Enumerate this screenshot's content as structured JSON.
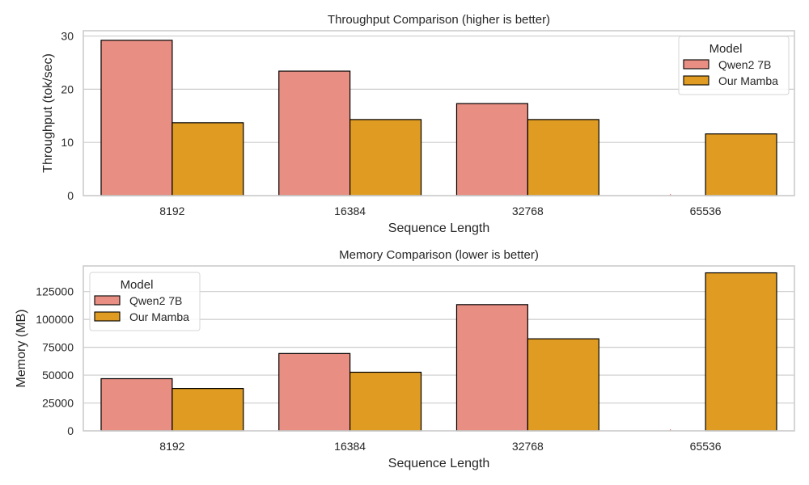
{
  "chart_data": [
    {
      "type": "bar",
      "title": "Throughput Comparison (higher is better)",
      "xlabel": "Sequence Length",
      "ylabel": "Throughput (tok/sec)",
      "categories": [
        "8192",
        "16384",
        "32768",
        "65536"
      ],
      "ylim": [
        0,
        31
      ],
      "yticks": [
        0,
        10,
        20,
        30
      ],
      "ytick_labels": [
        "0",
        "10",
        "20",
        "30"
      ],
      "grid": true,
      "legend": {
        "title": "Model",
        "position": "upper right",
        "entries": [
          "Qwen2 7B",
          "Our Mamba"
        ]
      },
      "series": [
        {
          "name": "Qwen2 7B",
          "color": "#e88e82",
          "values": [
            29.2,
            23.4,
            17.3,
            0
          ]
        },
        {
          "name": "Our Mamba",
          "color": "#e09c22",
          "values": [
            13.7,
            14.3,
            14.3,
            11.6
          ]
        }
      ]
    },
    {
      "type": "bar",
      "title": "Memory Comparison (lower is better)",
      "xlabel": "Sequence Length",
      "ylabel": "Memory (MB)",
      "categories": [
        "8192",
        "16384",
        "32768",
        "65536"
      ],
      "ylim": [
        0,
        148000
      ],
      "yticks": [
        0,
        25000,
        50000,
        75000,
        100000,
        125000
      ],
      "ytick_labels": [
        "0",
        "25000",
        "50000",
        "75000",
        "100000",
        "125000"
      ],
      "grid": true,
      "legend": {
        "title": "Model",
        "position": "upper left",
        "entries": [
          "Qwen2 7B",
          "Our Mamba"
        ]
      },
      "series": [
        {
          "name": "Qwen2 7B",
          "color": "#e88e82",
          "values": [
            46800,
            69400,
            113300,
            0
          ]
        },
        {
          "name": "Our Mamba",
          "color": "#e09c22",
          "values": [
            38000,
            52600,
            82600,
            141800
          ]
        }
      ]
    }
  ],
  "panels": [
    {
      "title": "Throughput Comparison (higher is better)",
      "xlabel": "Sequence Length",
      "ylabel": "Throughput (tok/sec)",
      "legend_title": "Model",
      "legend_labels": [
        "Qwen2 7B",
        "Our Mamba"
      ]
    },
    {
      "title": "Memory Comparison (lower is better)",
      "xlabel": "Sequence Length",
      "ylabel": "Memory (MB)",
      "legend_title": "Model",
      "legend_labels": [
        "Qwen2 7B",
        "Our Mamba"
      ]
    }
  ],
  "style": {
    "grid_color": "#cccccc",
    "spine_color": "#cccccc",
    "bar_edge": "#000000"
  }
}
